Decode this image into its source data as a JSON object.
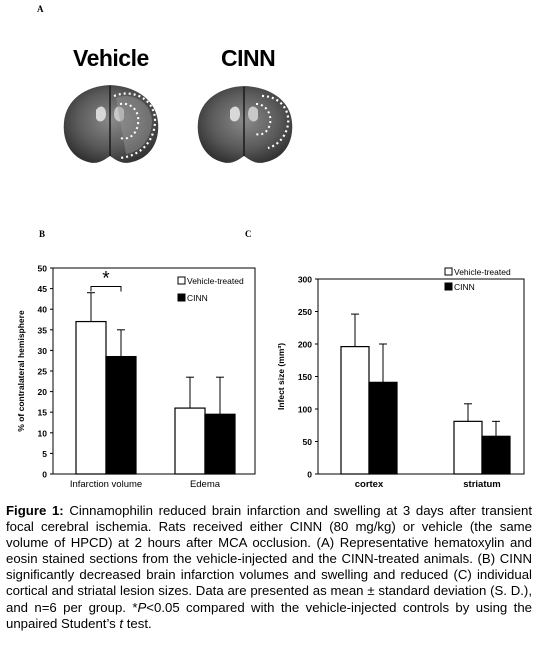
{
  "panel_labels": {
    "a": "A",
    "b": "B",
    "c": "C"
  },
  "panel_a": {
    "left_label": "Vehicle",
    "right_label": "CINN"
  },
  "chart_data": [
    {
      "panel": "B",
      "type": "bar",
      "categories": [
        "Infarction volume",
        "Edema"
      ],
      "series": [
        {
          "name": "Vehicle-treated",
          "color": "#ffffff",
          "values": [
            37,
            16
          ],
          "sd": [
            7,
            7.5
          ]
        },
        {
          "name": "CINN",
          "color": "#000000",
          "values": [
            28.5,
            14.5
          ],
          "sd": [
            6.5,
            9
          ]
        }
      ],
      "ylabel": "% of contralateral hemisphere",
      "ylim": [
        0,
        50
      ],
      "yticks": [
        "0",
        "5",
        "10",
        "15",
        "20",
        "25",
        "30",
        "35",
        "40",
        "45",
        "50"
      ],
      "significance": "*",
      "legend_position": "top-right"
    },
    {
      "panel": "C",
      "type": "bar",
      "categories": [
        "cortex",
        "striatum"
      ],
      "series": [
        {
          "name": "Vehicle-treated",
          "color": "#ffffff",
          "values": [
            196,
            81
          ],
          "sd": [
            50,
            27
          ]
        },
        {
          "name": "CINN",
          "color": "#000000",
          "values": [
            141,
            58
          ],
          "sd": [
            59,
            23
          ]
        }
      ],
      "ylabel": "Infect size (mm³)",
      "ylim": [
        0,
        300
      ],
      "yticks": [
        "0",
        "50",
        "100",
        "150",
        "200",
        "250",
        "300"
      ],
      "legend_position": "top-right"
    }
  ],
  "caption": {
    "prefix": "Figure 1:",
    "text_1": " Cinnamophilin reduced brain infarction and swelling at 3 days after transient focal cerebral ischemia. Rats received either CINN (80 mg/kg) or vehicle (the same volume of HPCD) at 2 hours after MCA occlusion. (A) Representative hematoxylin and eosin stained sections from the vehicle-injected and the CINN-treated animals. (B) CINN significantly decreased brain infarction volumes and swelling and reduced (C) individual cortical and striatal lesion sizes. Data are presented as mean ± standard deviation (S. D.), and n=6 per group. *",
    "p_italic": "P",
    "text_2": "<0.05 compared with the vehicle-injected controls by using the unpaired Student’s ",
    "t_italic": "t",
    "text_3": " test."
  }
}
